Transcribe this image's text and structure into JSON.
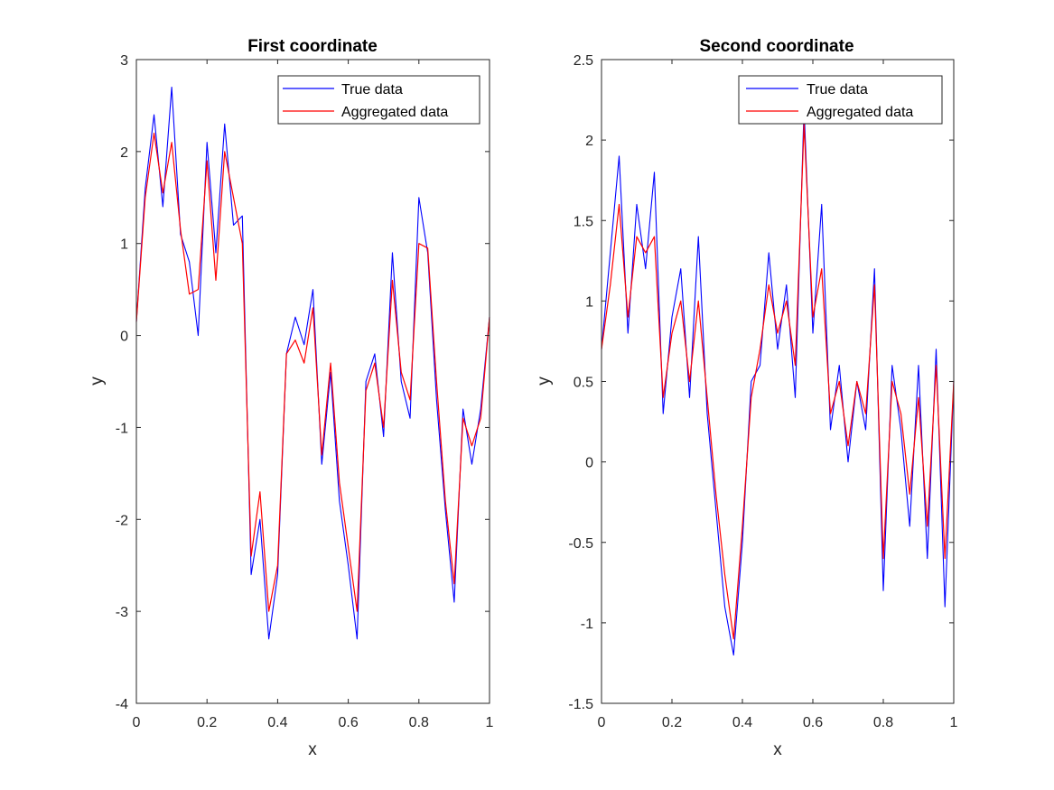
{
  "colors": {
    "true_series": "#0000ff",
    "aggregated_series": "#ff0000",
    "axes": "#262626",
    "background": "#ffffff"
  },
  "chart_data": [
    {
      "type": "line",
      "title": "First coordinate",
      "xlabel": "x",
      "ylabel": "y",
      "xlim": [
        0,
        1
      ],
      "ylim": [
        -4,
        3
      ],
      "xticks": [
        0,
        0.2,
        0.4,
        0.6,
        0.8,
        1
      ],
      "xtick_labels": [
        "0",
        "0.2",
        "0.4",
        "0.6",
        "0.8",
        "1"
      ],
      "yticks": [
        -4,
        -3,
        -2,
        -1,
        0,
        1,
        2,
        3
      ],
      "ytick_labels": [
        "-4",
        "-3",
        "-2",
        "-1",
        "0",
        "1",
        "2",
        "3"
      ],
      "grid": false,
      "legend_position": "top-right",
      "x": [
        0,
        0.025,
        0.05,
        0.075,
        0.1,
        0.125,
        0.15,
        0.175,
        0.2,
        0.225,
        0.25,
        0.275,
        0.3,
        0.325,
        0.35,
        0.375,
        0.4,
        0.425,
        0.45,
        0.475,
        0.5,
        0.525,
        0.55,
        0.575,
        0.6,
        0.625,
        0.65,
        0.675,
        0.7,
        0.725,
        0.75,
        0.775,
        0.8,
        0.825,
        0.85,
        0.875,
        0.9,
        0.925,
        0.95,
        0.975,
        1
      ],
      "series": [
        {
          "name": "True data",
          "values": [
            0.15,
            1.6,
            2.4,
            1.4,
            2.7,
            1.1,
            0.8,
            0.0,
            2.1,
            0.9,
            2.3,
            1.2,
            1.3,
            -2.6,
            -2.0,
            -3.3,
            -2.6,
            -0.2,
            0.2,
            -0.1,
            0.5,
            -1.4,
            -0.4,
            -1.8,
            -2.5,
            -3.3,
            -0.5,
            -0.2,
            -1.1,
            0.9,
            -0.5,
            -0.9,
            1.5,
            0.9,
            -0.7,
            -1.9,
            -2.9,
            -0.8,
            -1.4,
            -0.8,
            0.2
          ]
        },
        {
          "name": "Aggregated data",
          "values": [
            0.15,
            1.5,
            2.2,
            1.55,
            2.1,
            1.15,
            0.45,
            0.5,
            1.9,
            0.6,
            2.0,
            1.5,
            1.0,
            -2.4,
            -1.7,
            -3.0,
            -2.5,
            -0.2,
            -0.05,
            -0.3,
            0.3,
            -1.3,
            -0.3,
            -1.6,
            -2.3,
            -3.0,
            -0.6,
            -0.3,
            -1.0,
            0.6,
            -0.4,
            -0.7,
            1.0,
            0.95,
            -0.5,
            -1.8,
            -2.7,
            -0.9,
            -1.2,
            -0.9,
            0.2
          ]
        }
      ]
    },
    {
      "type": "line",
      "title": "Second coordinate",
      "xlabel": "x",
      "ylabel": "y",
      "xlim": [
        0,
        1
      ],
      "ylim": [
        -1.5,
        2.5
      ],
      "xticks": [
        0,
        0.2,
        0.4,
        0.6,
        0.8,
        1
      ],
      "xtick_labels": [
        "0",
        "0.2",
        "0.4",
        "0.6",
        "0.8",
        "1"
      ],
      "yticks": [
        -1.5,
        -1,
        -0.5,
        0,
        0.5,
        1,
        1.5,
        2,
        2.5
      ],
      "ytick_labels": [
        "-1.5",
        "-1",
        "-0.5",
        "0",
        "0.5",
        "1",
        "1.5",
        "2",
        "2.5"
      ],
      "grid": false,
      "legend_position": "top-right",
      "x": [
        0,
        0.025,
        0.05,
        0.075,
        0.1,
        0.125,
        0.15,
        0.175,
        0.2,
        0.225,
        0.25,
        0.275,
        0.3,
        0.325,
        0.35,
        0.375,
        0.4,
        0.425,
        0.45,
        0.475,
        0.5,
        0.525,
        0.55,
        0.575,
        0.6,
        0.625,
        0.65,
        0.675,
        0.7,
        0.725,
        0.75,
        0.775,
        0.8,
        0.825,
        0.85,
        0.875,
        0.9,
        0.925,
        0.95,
        0.975,
        1
      ],
      "series": [
        {
          "name": "True data",
          "values": [
            0.7,
            1.3,
            1.9,
            0.8,
            1.6,
            1.2,
            1.8,
            0.3,
            0.9,
            1.2,
            0.4,
            1.4,
            0.3,
            -0.3,
            -0.9,
            -1.2,
            -0.5,
            0.5,
            0.6,
            1.3,
            0.7,
            1.1,
            0.4,
            2.2,
            0.8,
            1.6,
            0.2,
            0.6,
            0.0,
            0.5,
            0.2,
            1.2,
            -0.8,
            0.6,
            0.2,
            -0.4,
            0.6,
            -0.6,
            0.7,
            -0.9,
            0.5
          ]
        },
        {
          "name": "Aggregated data",
          "values": [
            0.7,
            1.1,
            1.6,
            0.9,
            1.4,
            1.3,
            1.4,
            0.4,
            0.8,
            1.0,
            0.5,
            1.0,
            0.4,
            -0.2,
            -0.7,
            -1.1,
            -0.4,
            0.4,
            0.7,
            1.1,
            0.8,
            1.0,
            0.6,
            2.1,
            0.9,
            1.2,
            0.3,
            0.5,
            0.1,
            0.5,
            0.3,
            1.1,
            -0.6,
            0.5,
            0.3,
            -0.2,
            0.4,
            -0.4,
            0.6,
            -0.6,
            0.5
          ]
        }
      ]
    }
  ]
}
